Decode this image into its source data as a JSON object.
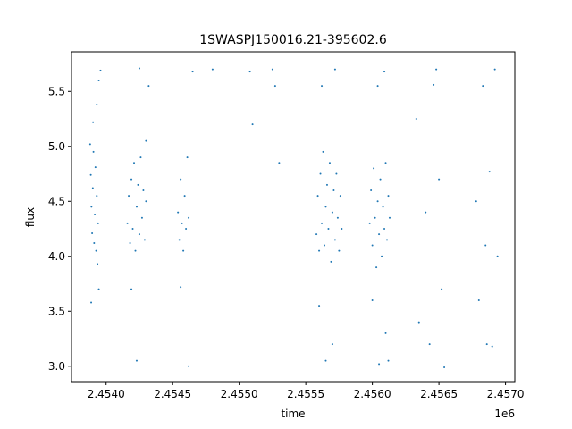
{
  "chart_data": {
    "type": "scatter",
    "title": "1SWASPJ150016.21-395602.6",
    "xlabel": "time",
    "ylabel": "flux",
    "x_offset_label": "1e6",
    "x_unit_scale": 1000000,
    "xlim": [
      2453740,
      2457070
    ],
    "ylim": [
      2.86,
      5.86
    ],
    "xticks": [
      2454000,
      2454500,
      2455000,
      2455500,
      2456000,
      2456500,
      2457000
    ],
    "xtick_labels": [
      "2.4540",
      "2.4545",
      "2.4550",
      "2.4555",
      "2.4560",
      "2.4565",
      "2.4570"
    ],
    "yticks": [
      3.0,
      3.5,
      4.0,
      4.5,
      5.0,
      5.5
    ],
    "ytick_labels": [
      "3.0",
      "3.5",
      "4.0",
      "4.5",
      "5.0",
      "5.5"
    ],
    "marker_color": "#1f77b4",
    "grid": false,
    "legend": "none",
    "series": [
      {
        "values_xy": [
          [
            2453880,
            5.02
          ],
          [
            2453885,
            4.74
          ],
          [
            2453890,
            4.45
          ],
          [
            2453895,
            4.21
          ],
          [
            2453900,
            4.62
          ],
          [
            2453905,
            4.95
          ],
          [
            2453910,
            4.12
          ],
          [
            2453915,
            4.38
          ],
          [
            2453920,
            4.81
          ],
          [
            2453925,
            4.05
          ],
          [
            2453930,
            4.55
          ],
          [
            2453935,
            3.93
          ],
          [
            2453940,
            4.3
          ],
          [
            2453945,
            3.7
          ],
          [
            2453888,
            3.58
          ],
          [
            2453902,
            5.22
          ],
          [
            2453930,
            5.38
          ],
          [
            2453945,
            5.6
          ],
          [
            2453958,
            5.69
          ],
          [
            2454160,
            4.3
          ],
          [
            2454170,
            4.55
          ],
          [
            2454180,
            4.12
          ],
          [
            2454190,
            4.7
          ],
          [
            2454200,
            4.25
          ],
          [
            2454210,
            4.85
          ],
          [
            2454220,
            4.05
          ],
          [
            2454230,
            4.45
          ],
          [
            2454240,
            4.65
          ],
          [
            2454250,
            4.2
          ],
          [
            2454260,
            4.9
          ],
          [
            2454270,
            4.35
          ],
          [
            2454280,
            4.6
          ],
          [
            2454290,
            4.15
          ],
          [
            2454300,
            4.5
          ],
          [
            2454190,
            3.7
          ],
          [
            2454230,
            3.05
          ],
          [
            2454250,
            5.71
          ],
          [
            2454300,
            5.05
          ],
          [
            2454320,
            5.55
          ],
          [
            2454540,
            4.4
          ],
          [
            2454550,
            4.15
          ],
          [
            2454560,
            4.7
          ],
          [
            2454570,
            4.3
          ],
          [
            2454580,
            4.05
          ],
          [
            2454590,
            4.55
          ],
          [
            2454600,
            4.25
          ],
          [
            2454610,
            4.9
          ],
          [
            2454620,
            4.35
          ],
          [
            2454560,
            3.72
          ],
          [
            2454620,
            3.0
          ],
          [
            2454650,
            5.68
          ],
          [
            2454800,
            5.7
          ],
          [
            2455080,
            5.68
          ],
          [
            2455100,
            5.2
          ],
          [
            2455250,
            5.7
          ],
          [
            2455270,
            5.55
          ],
          [
            2455300,
            4.85
          ],
          [
            2455580,
            4.2
          ],
          [
            2455590,
            4.55
          ],
          [
            2455600,
            4.05
          ],
          [
            2455610,
            4.75
          ],
          [
            2455620,
            4.3
          ],
          [
            2455630,
            4.95
          ],
          [
            2455640,
            4.1
          ],
          [
            2455650,
            4.45
          ],
          [
            2455660,
            4.65
          ],
          [
            2455670,
            4.25
          ],
          [
            2455680,
            4.85
          ],
          [
            2455690,
            3.95
          ],
          [
            2455700,
            4.4
          ],
          [
            2455710,
            4.6
          ],
          [
            2455720,
            4.15
          ],
          [
            2455730,
            4.75
          ],
          [
            2455740,
            4.35
          ],
          [
            2455750,
            4.05
          ],
          [
            2455760,
            4.55
          ],
          [
            2455770,
            4.25
          ],
          [
            2455600,
            3.55
          ],
          [
            2455650,
            3.05
          ],
          [
            2455700,
            3.2
          ],
          [
            2455620,
            5.55
          ],
          [
            2455720,
            5.7
          ],
          [
            2455980,
            4.3
          ],
          [
            2455990,
            4.6
          ],
          [
            2456000,
            4.1
          ],
          [
            2456010,
            4.8
          ],
          [
            2456020,
            4.35
          ],
          [
            2456030,
            3.9
          ],
          [
            2456040,
            4.5
          ],
          [
            2456050,
            4.2
          ],
          [
            2456060,
            4.7
          ],
          [
            2456070,
            4.0
          ],
          [
            2456080,
            4.45
          ],
          [
            2456090,
            4.25
          ],
          [
            2456100,
            4.85
          ],
          [
            2456110,
            4.15
          ],
          [
            2456120,
            4.55
          ],
          [
            2456130,
            4.35
          ],
          [
            2456000,
            3.6
          ],
          [
            2456050,
            3.02
          ],
          [
            2456100,
            3.3
          ],
          [
            2456040,
            5.55
          ],
          [
            2456090,
            5.68
          ],
          [
            2456120,
            3.05
          ],
          [
            2456330,
            5.25
          ],
          [
            2456350,
            3.4
          ],
          [
            2456400,
            4.4
          ],
          [
            2456430,
            3.2
          ],
          [
            2456460,
            5.56
          ],
          [
            2456480,
            5.7
          ],
          [
            2456500,
            4.7
          ],
          [
            2456520,
            3.7
          ],
          [
            2456540,
            2.99
          ],
          [
            2456780,
            4.5
          ],
          [
            2456800,
            3.6
          ],
          [
            2456830,
            5.55
          ],
          [
            2456850,
            4.1
          ],
          [
            2456880,
            4.77
          ],
          [
            2456900,
            3.18
          ],
          [
            2456920,
            5.7
          ],
          [
            2456940,
            4.0
          ],
          [
            2456860,
            3.2
          ]
        ]
      }
    ]
  }
}
